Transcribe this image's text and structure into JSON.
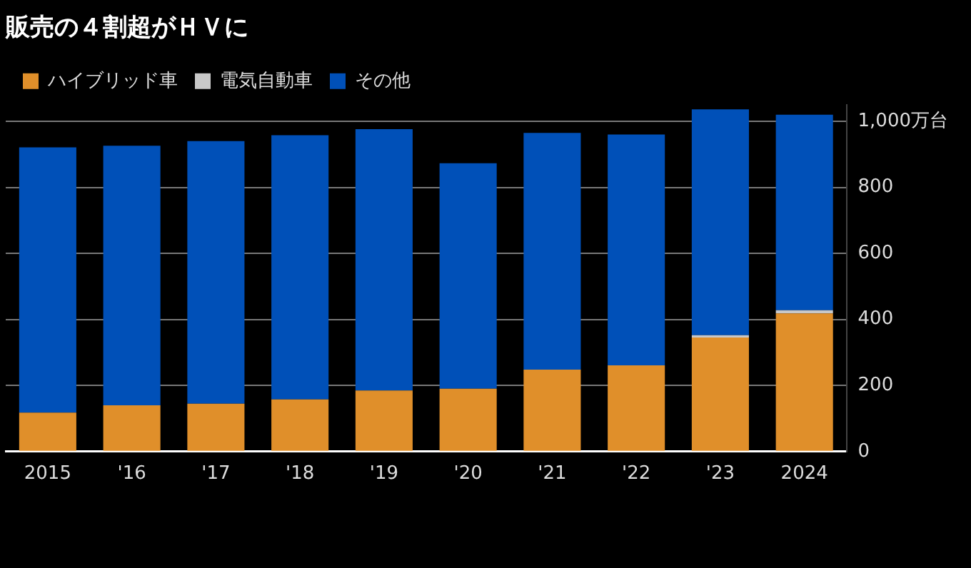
{
  "chart_data": {
    "type": "bar",
    "title": "販売の４割超がＨＶに",
    "stacked": true,
    "categories": [
      "2015",
      "'16",
      "'17",
      "'18",
      "'19",
      "'20",
      "'21",
      "'22",
      "'23",
      "2024"
    ],
    "series": [
      {
        "name": "ハイブリッド車",
        "color": "#e08f2a",
        "values": [
          118,
          140,
          145,
          158,
          185,
          190,
          248,
          261,
          345,
          418
        ]
      },
      {
        "name": "電気自動車",
        "color": "#c8c8c8",
        "values": [
          0,
          0,
          0,
          0,
          0,
          0,
          0,
          0,
          7,
          10
        ]
      },
      {
        "name": "その他",
        "color": "#0050b8",
        "values": [
          803,
          786,
          795,
          800,
          791,
          683,
          717,
          699,
          684,
          592
        ]
      }
    ],
    "ylim": [
      0,
      1050
    ],
    "yticks": [
      0,
      200,
      400,
      600,
      800,
      {
        "value": 1000,
        "label": "1,000万台"
      }
    ],
    "grid": "y",
    "legend": "top left"
  }
}
